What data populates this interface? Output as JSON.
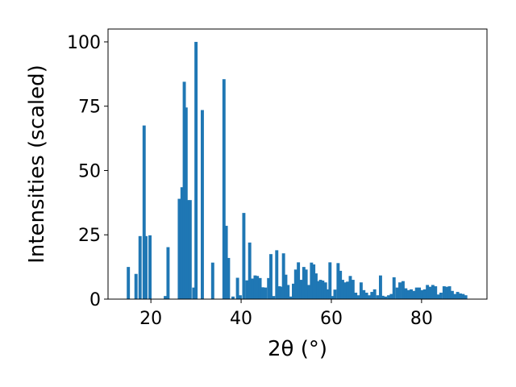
{
  "chart_data": {
    "type": "bar",
    "xlabel": "2θ (°)",
    "ylabel": "Intensities (scaled)",
    "xlim": [
      10.5,
      94.5
    ],
    "ylim": [
      0,
      105
    ],
    "grid": false,
    "bar_color": "#1f77b4",
    "bar_width": 0.7,
    "x_ticks": [
      20,
      40,
      60,
      80
    ],
    "y_ticks": [
      0,
      25,
      50,
      75,
      100
    ],
    "x": [
      15.0,
      16.7,
      17.6,
      18.5,
      18.9,
      19.8,
      23.2,
      23.8,
      26.3,
      26.9,
      27.4,
      27.8,
      28.2,
      28.7,
      29.5,
      30.0,
      31.4,
      33.7,
      36.2,
      36.7,
      37.2,
      38.2,
      39.2,
      39.8,
      40.6,
      41.3,
      41.9,
      42.5,
      43.1,
      43.6,
      44.2,
      44.8,
      45.4,
      46.1,
      46.6,
      47.2,
      47.9,
      48.5,
      49.0,
      49.4,
      49.9,
      50.4,
      51.0,
      51.6,
      52.1,
      52.7,
      53.3,
      53.9,
      54.4,
      55.0,
      55.6,
      56.1,
      56.6,
      57.1,
      57.6,
      58.1,
      58.7,
      59.2,
      59.7,
      60.2,
      60.8,
      61.5,
      62.0,
      62.5,
      63.1,
      63.6,
      64.2,
      64.8,
      65.4,
      66.0,
      66.6,
      67.2,
      67.8,
      68.4,
      69.0,
      69.6,
      70.3,
      70.9,
      71.4,
      72.0,
      72.7,
      73.3,
      73.9,
      74.6,
      75.2,
      75.9,
      76.5,
      77.1,
      77.7,
      78.3,
      78.9,
      79.5,
      80.1,
      80.7,
      81.3,
      81.9,
      82.5,
      83.1,
      83.7,
      84.3,
      85.0,
      85.6,
      86.2,
      86.8,
      87.4,
      88.0,
      88.6,
      89.2,
      89.8
    ],
    "values": [
      12.5,
      9.8,
      24.5,
      67.5,
      24.5,
      24.8,
      1.2,
      20.2,
      39.0,
      43.5,
      84.5,
      74.5,
      38.5,
      38.5,
      4.5,
      100.0,
      73.5,
      14.2,
      85.5,
      28.5,
      16.0,
      1.0,
      8.3,
      1.5,
      33.5,
      7.3,
      22.0,
      8.0,
      9.2,
      9.0,
      8.2,
      4.6,
      4.5,
      8.2,
      17.5,
      1.2,
      19.0,
      5.0,
      4.8,
      17.8,
      9.5,
      5.5,
      1.0,
      6.0,
      11.5,
      14.3,
      7.5,
      12.5,
      11.5,
      5.5,
      14.2,
      13.5,
      10.0,
      7.0,
      7.5,
      7.2,
      6.5,
      3.8,
      14.3,
      1.2,
      3.7,
      14.0,
      11.0,
      7.5,
      6.5,
      6.8,
      9.0,
      7.5,
      2.5,
      1.5,
      6.5,
      3.5,
      2.5,
      1.5,
      2.8,
      3.8,
      1.5,
      9.2,
      1.3,
      1.0,
      1.5,
      2.0,
      8.5,
      4.5,
      6.5,
      7.0,
      4.2,
      3.5,
      3.8,
      3.2,
      4.5,
      4.5,
      3.5,
      3.8,
      5.5,
      4.8,
      5.5,
      5.0,
      1.8,
      2.5,
      5.0,
      4.8,
      5.0,
      3.2,
      2.0,
      2.8,
      2.2,
      2.0,
      1.5
    ]
  }
}
